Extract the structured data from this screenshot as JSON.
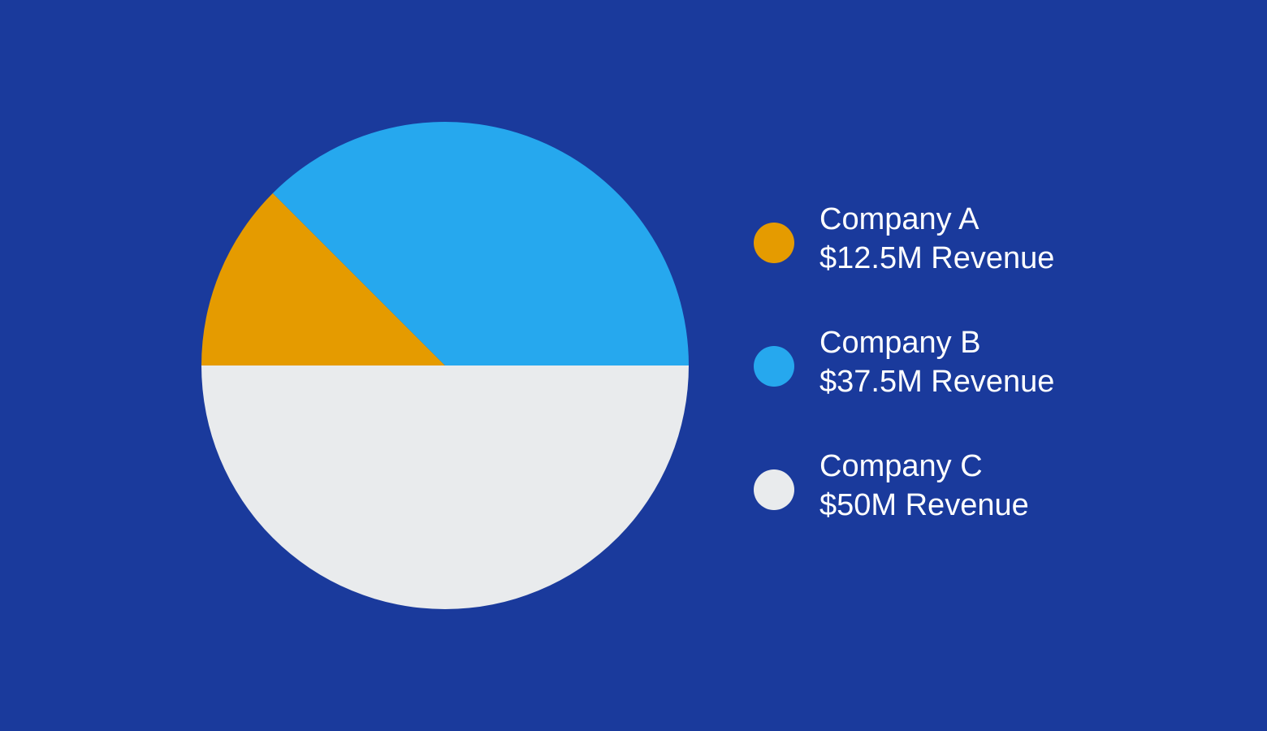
{
  "colors": {
    "background": "#1A3A9C",
    "company_a": "#E59B00",
    "company_b": "#26A8EE",
    "company_c": "#E9EBED",
    "legend_text": "#FFFFFF"
  },
  "legend": [
    {
      "name": "Company A",
      "value_label": "$12.5M Revenue"
    },
    {
      "name": "Company B",
      "value_label": "$37.5M Revenue"
    },
    {
      "name": "Company C",
      "value_label": "$50M Revenue"
    }
  ],
  "chart_data": {
    "type": "pie",
    "title": "",
    "categories": [
      "Company A",
      "Company B",
      "Company C"
    ],
    "values": [
      12.5,
      37.5,
      50
    ],
    "unit": "$M Revenue",
    "legend_position": "right",
    "start_angle_deg": 180,
    "direction": "clockwise"
  }
}
